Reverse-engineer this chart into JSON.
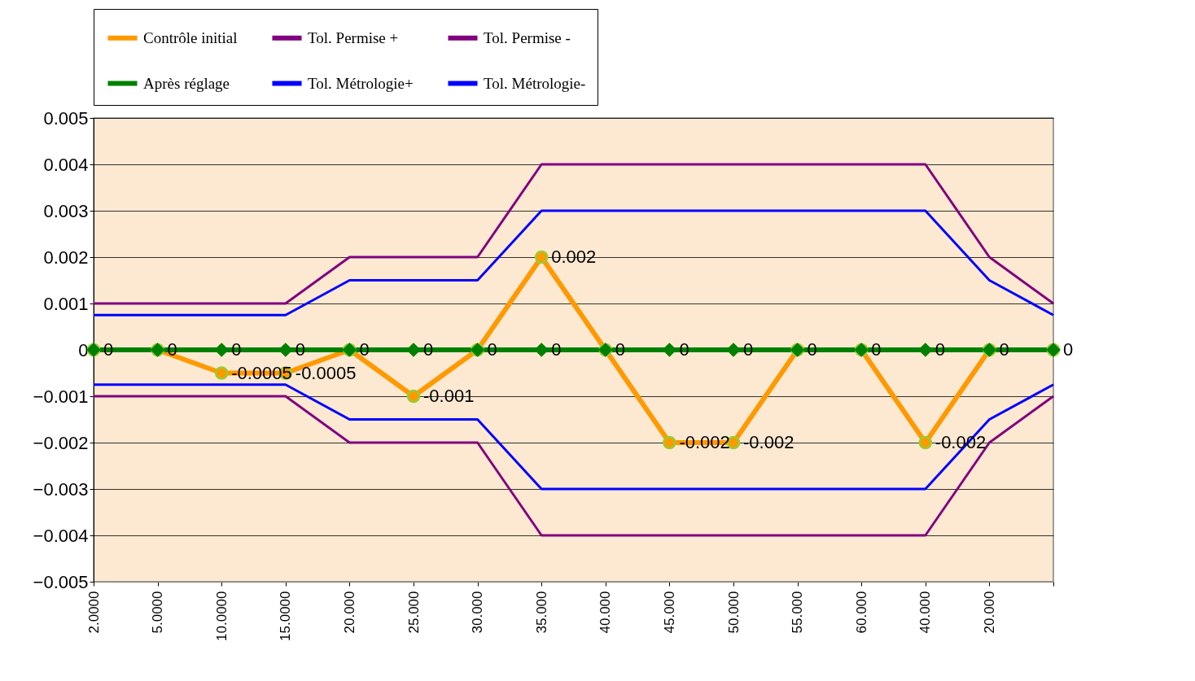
{
  "chart_data": {
    "type": "line",
    "categories": [
      "2.0000",
      "5.0000",
      "10.0000",
      "15.0000",
      "20.000",
      "25.000",
      "30.000",
      "35.000",
      "40.000",
      "45.000",
      "50.000",
      "55.000",
      "60.000",
      "40.000",
      "20.000",
      null
    ],
    "series": [
      {
        "name": "Contrôle initial",
        "color": "#ff9900",
        "marker": "circle",
        "values": [
          0,
          0,
          -0.0005,
          -0.0005,
          0,
          -0.001,
          0,
          0.002,
          0,
          -0.002,
          -0.002,
          0,
          0,
          -0.002,
          0,
          0
        ],
        "value_labels": [
          null,
          null,
          "-0.0005",
          "-0.0005",
          null,
          "-0.001",
          null,
          "0.002",
          null,
          "-0.002",
          "-0.002",
          null,
          null,
          "-0.002",
          null,
          null
        ]
      },
      {
        "name": "Tol. Permise +",
        "color": "#800080",
        "marker": "none",
        "values": [
          0.001,
          0.001,
          0.001,
          0.001,
          0.002,
          0.002,
          0.002,
          0.004,
          0.004,
          0.004,
          0.004,
          0.004,
          0.004,
          0.004,
          0.002,
          0.001
        ]
      },
      {
        "name": "Tol. Permise -",
        "color": "#800080",
        "marker": "none",
        "values": [
          -0.001,
          -0.001,
          -0.001,
          -0.001,
          -0.002,
          -0.002,
          -0.002,
          -0.004,
          -0.004,
          -0.004,
          -0.004,
          -0.004,
          -0.004,
          -0.004,
          -0.002,
          -0.001
        ]
      },
      {
        "name": "Après réglage",
        "color": "#008000",
        "marker": "diamond",
        "data_labels": true,
        "values": [
          0,
          0,
          0,
          0,
          0,
          0,
          0,
          0,
          0,
          0,
          0,
          0,
          0,
          0,
          0,
          0
        ]
      },
      {
        "name": "Tol. Métrologie+",
        "color": "#0000ff",
        "marker": "none",
        "values": [
          0.00075,
          0.00075,
          0.00075,
          0.00075,
          0.0015,
          0.0015,
          0.0015,
          0.003,
          0.003,
          0.003,
          0.003,
          0.003,
          0.003,
          0.003,
          0.0015,
          0.00075
        ]
      },
      {
        "name": "Tol. Métrologie-",
        "color": "#0000ff",
        "marker": "none",
        "values": [
          -0.00075,
          -0.00075,
          -0.00075,
          -0.00075,
          -0.0015,
          -0.0015,
          -0.0015,
          -0.003,
          -0.003,
          -0.003,
          -0.003,
          -0.003,
          -0.003,
          -0.003,
          -0.0015,
          -0.00075
        ]
      }
    ],
    "ylim": [
      -0.005,
      0.005
    ],
    "yticks": [
      -0.005,
      -0.004,
      -0.003,
      -0.002,
      -0.001,
      0,
      0.001,
      0.002,
      0.003,
      0.004,
      0.005
    ],
    "grid": "y",
    "legend": "top",
    "line_style": "solid"
  }
}
